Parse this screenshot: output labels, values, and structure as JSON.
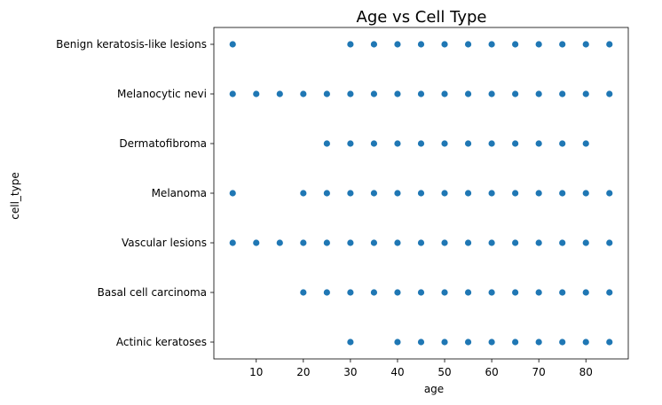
{
  "chart_data": {
    "type": "scatter",
    "title": "Age vs Cell Type",
    "xlabel": "age",
    "ylabel": "cell_type",
    "xlim": [
      1,
      89
    ],
    "x_ticks": [
      10,
      20,
      30,
      40,
      50,
      60,
      70,
      80
    ],
    "categories": [
      "Benign keratosis-like lesions ",
      "Melanocytic nevi",
      "Dermatofibroma",
      "Melanoma",
      "Vascular lesions",
      "Basal cell carcinoma",
      "Actinic keratoses"
    ],
    "marker_color": "#1f77b4",
    "grid": false,
    "points": [
      {
        "category": "Benign keratosis-like lesions ",
        "ages": [
          5,
          30,
          35,
          40,
          45,
          50,
          55,
          60,
          65,
          70,
          75,
          80,
          85
        ]
      },
      {
        "category": "Melanocytic nevi",
        "ages": [
          5,
          10,
          15,
          20,
          25,
          30,
          35,
          40,
          45,
          50,
          55,
          60,
          65,
          70,
          75,
          80,
          85
        ]
      },
      {
        "category": "Dermatofibroma",
        "ages": [
          25,
          30,
          35,
          40,
          45,
          50,
          55,
          60,
          65,
          70,
          75,
          80
        ]
      },
      {
        "category": "Melanoma",
        "ages": [
          5,
          20,
          25,
          30,
          35,
          40,
          45,
          50,
          55,
          60,
          65,
          70,
          75,
          80,
          85
        ]
      },
      {
        "category": "Vascular lesions",
        "ages": [
          5,
          10,
          15,
          20,
          25,
          30,
          35,
          40,
          45,
          50,
          55,
          60,
          65,
          70,
          75,
          80,
          85
        ]
      },
      {
        "category": "Basal cell carcinoma",
        "ages": [
          20,
          25,
          30,
          35,
          40,
          45,
          50,
          55,
          60,
          65,
          70,
          75,
          80,
          85
        ]
      },
      {
        "category": "Actinic keratoses",
        "ages": [
          30,
          40,
          45,
          50,
          55,
          60,
          65,
          70,
          75,
          80,
          85
        ]
      }
    ]
  }
}
